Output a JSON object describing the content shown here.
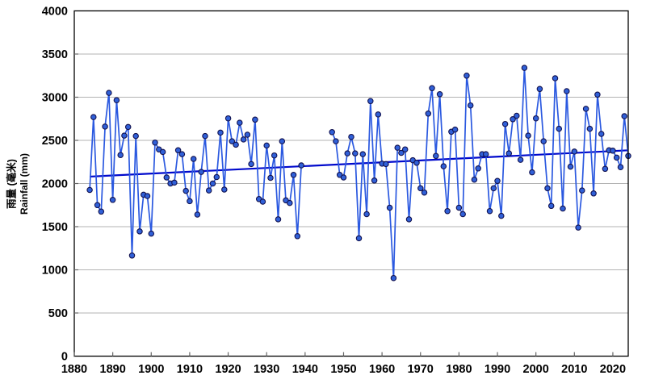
{
  "chart_data": {
    "type": "line",
    "title": "",
    "ylabel_zh": "雨量 (毫米)",
    "ylabel_en": "Rainfall (mm)",
    "xlabel": "",
    "ylim": [
      0,
      4000
    ],
    "xlim": [
      1880,
      2025
    ],
    "y_ticks": [
      0,
      500,
      1000,
      1500,
      2000,
      2500,
      3000,
      3500,
      4000
    ],
    "x_ticks": [
      1880,
      1890,
      1900,
      1910,
      1920,
      1930,
      1940,
      1950,
      1960,
      1970,
      1980,
      1990,
      2000,
      2010,
      2020
    ],
    "grid": "horizontal-only",
    "legend_position": "none",
    "data_gap_visible": "no line between 1939 and 1947",
    "series": [
      {
        "name": "annual-rainfall",
        "type": "line-with-markers",
        "years": [
          1884,
          1885,
          1886,
          1887,
          1888,
          1889,
          1890,
          1891,
          1892,
          1893,
          1894,
          1895,
          1896,
          1897,
          1898,
          1899,
          1900,
          1901,
          1902,
          1903,
          1904,
          1905,
          1906,
          1907,
          1908,
          1909,
          1910,
          1911,
          1912,
          1913,
          1914,
          1915,
          1916,
          1917,
          1918,
          1919,
          1920,
          1921,
          1922,
          1923,
          1924,
          1925,
          1926,
          1927,
          1928,
          1929,
          1930,
          1931,
          1932,
          1933,
          1934,
          1935,
          1936,
          1937,
          1938,
          1939,
          1947,
          1948,
          1949,
          1950,
          1951,
          1952,
          1953,
          1954,
          1955,
          1956,
          1957,
          1958,
          1959,
          1960,
          1961,
          1962,
          1963,
          1964,
          1965,
          1966,
          1967,
          1968,
          1969,
          1970,
          1971,
          1972,
          1973,
          1974,
          1975,
          1976,
          1977,
          1978,
          1979,
          1980,
          1981,
          1982,
          1983,
          1984,
          1985,
          1986,
          1987,
          1988,
          1989,
          1990,
          1991,
          1992,
          1993,
          1994,
          1995,
          1996,
          1997,
          1998,
          1999,
          2000,
          2001,
          2002,
          2003,
          2004,
          2005,
          2006,
          2007,
          2008,
          2009,
          2010,
          2011,
          2012,
          2013,
          2014,
          2015,
          2016,
          2017,
          2018,
          2019,
          2020,
          2021,
          2022,
          2023,
          2024
        ],
        "values": [
          1925,
          2770,
          1750,
          1675,
          2660,
          3050,
          1810,
          2965,
          2330,
          2555,
          2655,
          1165,
          2550,
          1445,
          1870,
          1855,
          1420,
          2475,
          2395,
          2365,
          2070,
          2000,
          2010,
          2385,
          2340,
          1915,
          1795,
          2285,
          1640,
          2135,
          2550,
          1920,
          2000,
          2075,
          2590,
          1930,
          2755,
          2490,
          2450,
          2705,
          2510,
          2565,
          2225,
          2740,
          1820,
          1790,
          2440,
          2065,
          2325,
          1585,
          2490,
          1805,
          1775,
          2100,
          1390,
          2210,
          2595,
          2490,
          2100,
          2070,
          2350,
          2540,
          2350,
          1365,
          2340,
          1645,
          2955,
          2035,
          2800,
          2230,
          2225,
          1720,
          905,
          2415,
          2355,
          2395,
          1585,
          2270,
          2240,
          1945,
          1895,
          2810,
          3105,
          2320,
          3035,
          2200,
          1680,
          2600,
          2625,
          1720,
          1645,
          3250,
          2905,
          2045,
          2175,
          2340,
          2340,
          1680,
          1945,
          2030,
          1625,
          2690,
          2350,
          2745,
          2785,
          2275,
          3340,
          2555,
          2130,
          2755,
          3095,
          2490,
          1945,
          1740,
          3220,
          2635,
          1710,
          3070,
          2195,
          2370,
          1490,
          1920,
          2865,
          2635,
          1885,
          3030,
          2575,
          2170,
          2385,
          2380,
          2300,
          2190,
          2780,
          2320
        ],
        "line_color": "#2b59e0",
        "marker_fill": "#3060d8",
        "marker_stroke": "#12124f"
      },
      {
        "name": "trend-line",
        "type": "straight-line",
        "x": [
          1884,
          2024
        ],
        "y": [
          2080,
          2385
        ],
        "color": "#0009cc"
      }
    ]
  },
  "colors": {
    "background": "#ffffff",
    "grid": "#b3b3b3",
    "axis_border": "#000000",
    "tick": "#666666",
    "text": "#000000"
  }
}
